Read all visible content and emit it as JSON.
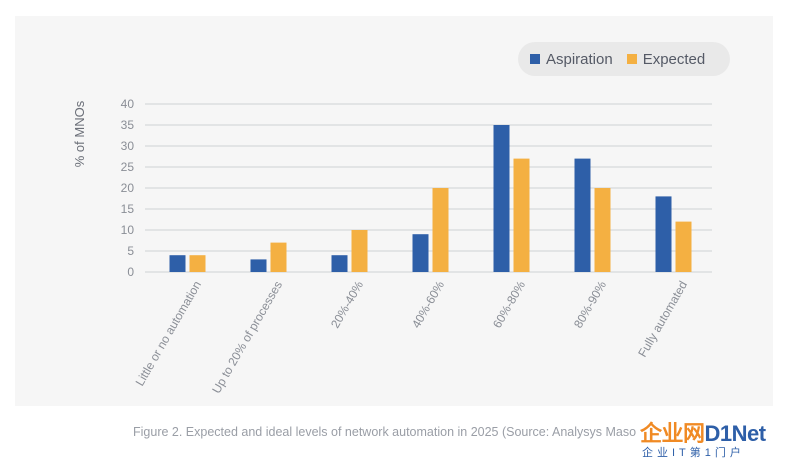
{
  "chart_data": {
    "type": "bar",
    "ylabel": "% of MNOs",
    "xlabel": "",
    "ylim": [
      0,
      40
    ],
    "yticks": [
      0,
      5,
      10,
      15,
      20,
      25,
      30,
      35,
      40
    ],
    "categories": [
      "Little or no automation",
      "Up to 20% of processes",
      "20%-40%",
      "40%-60%",
      "60%-80%",
      "80%-90%",
      "Fully automated"
    ],
    "series": [
      {
        "name": "Aspiration",
        "color": "#2e5fa8",
        "values": [
          4,
          3,
          4,
          9,
          35,
          27,
          18
        ]
      },
      {
        "name": "Expected",
        "color": "#f4b042",
        "values": [
          4,
          7,
          10,
          20,
          27,
          20,
          12
        ]
      }
    ],
    "legend_position": "top-right",
    "grid": true
  },
  "caption": "Figure 2. Expected and ideal levels of network automation in 2025 (Source: Analysys Maso",
  "watermark": {
    "main_orange": "企业网",
    "main_blue": "D1Net",
    "sub": "企业IT第1门户"
  }
}
